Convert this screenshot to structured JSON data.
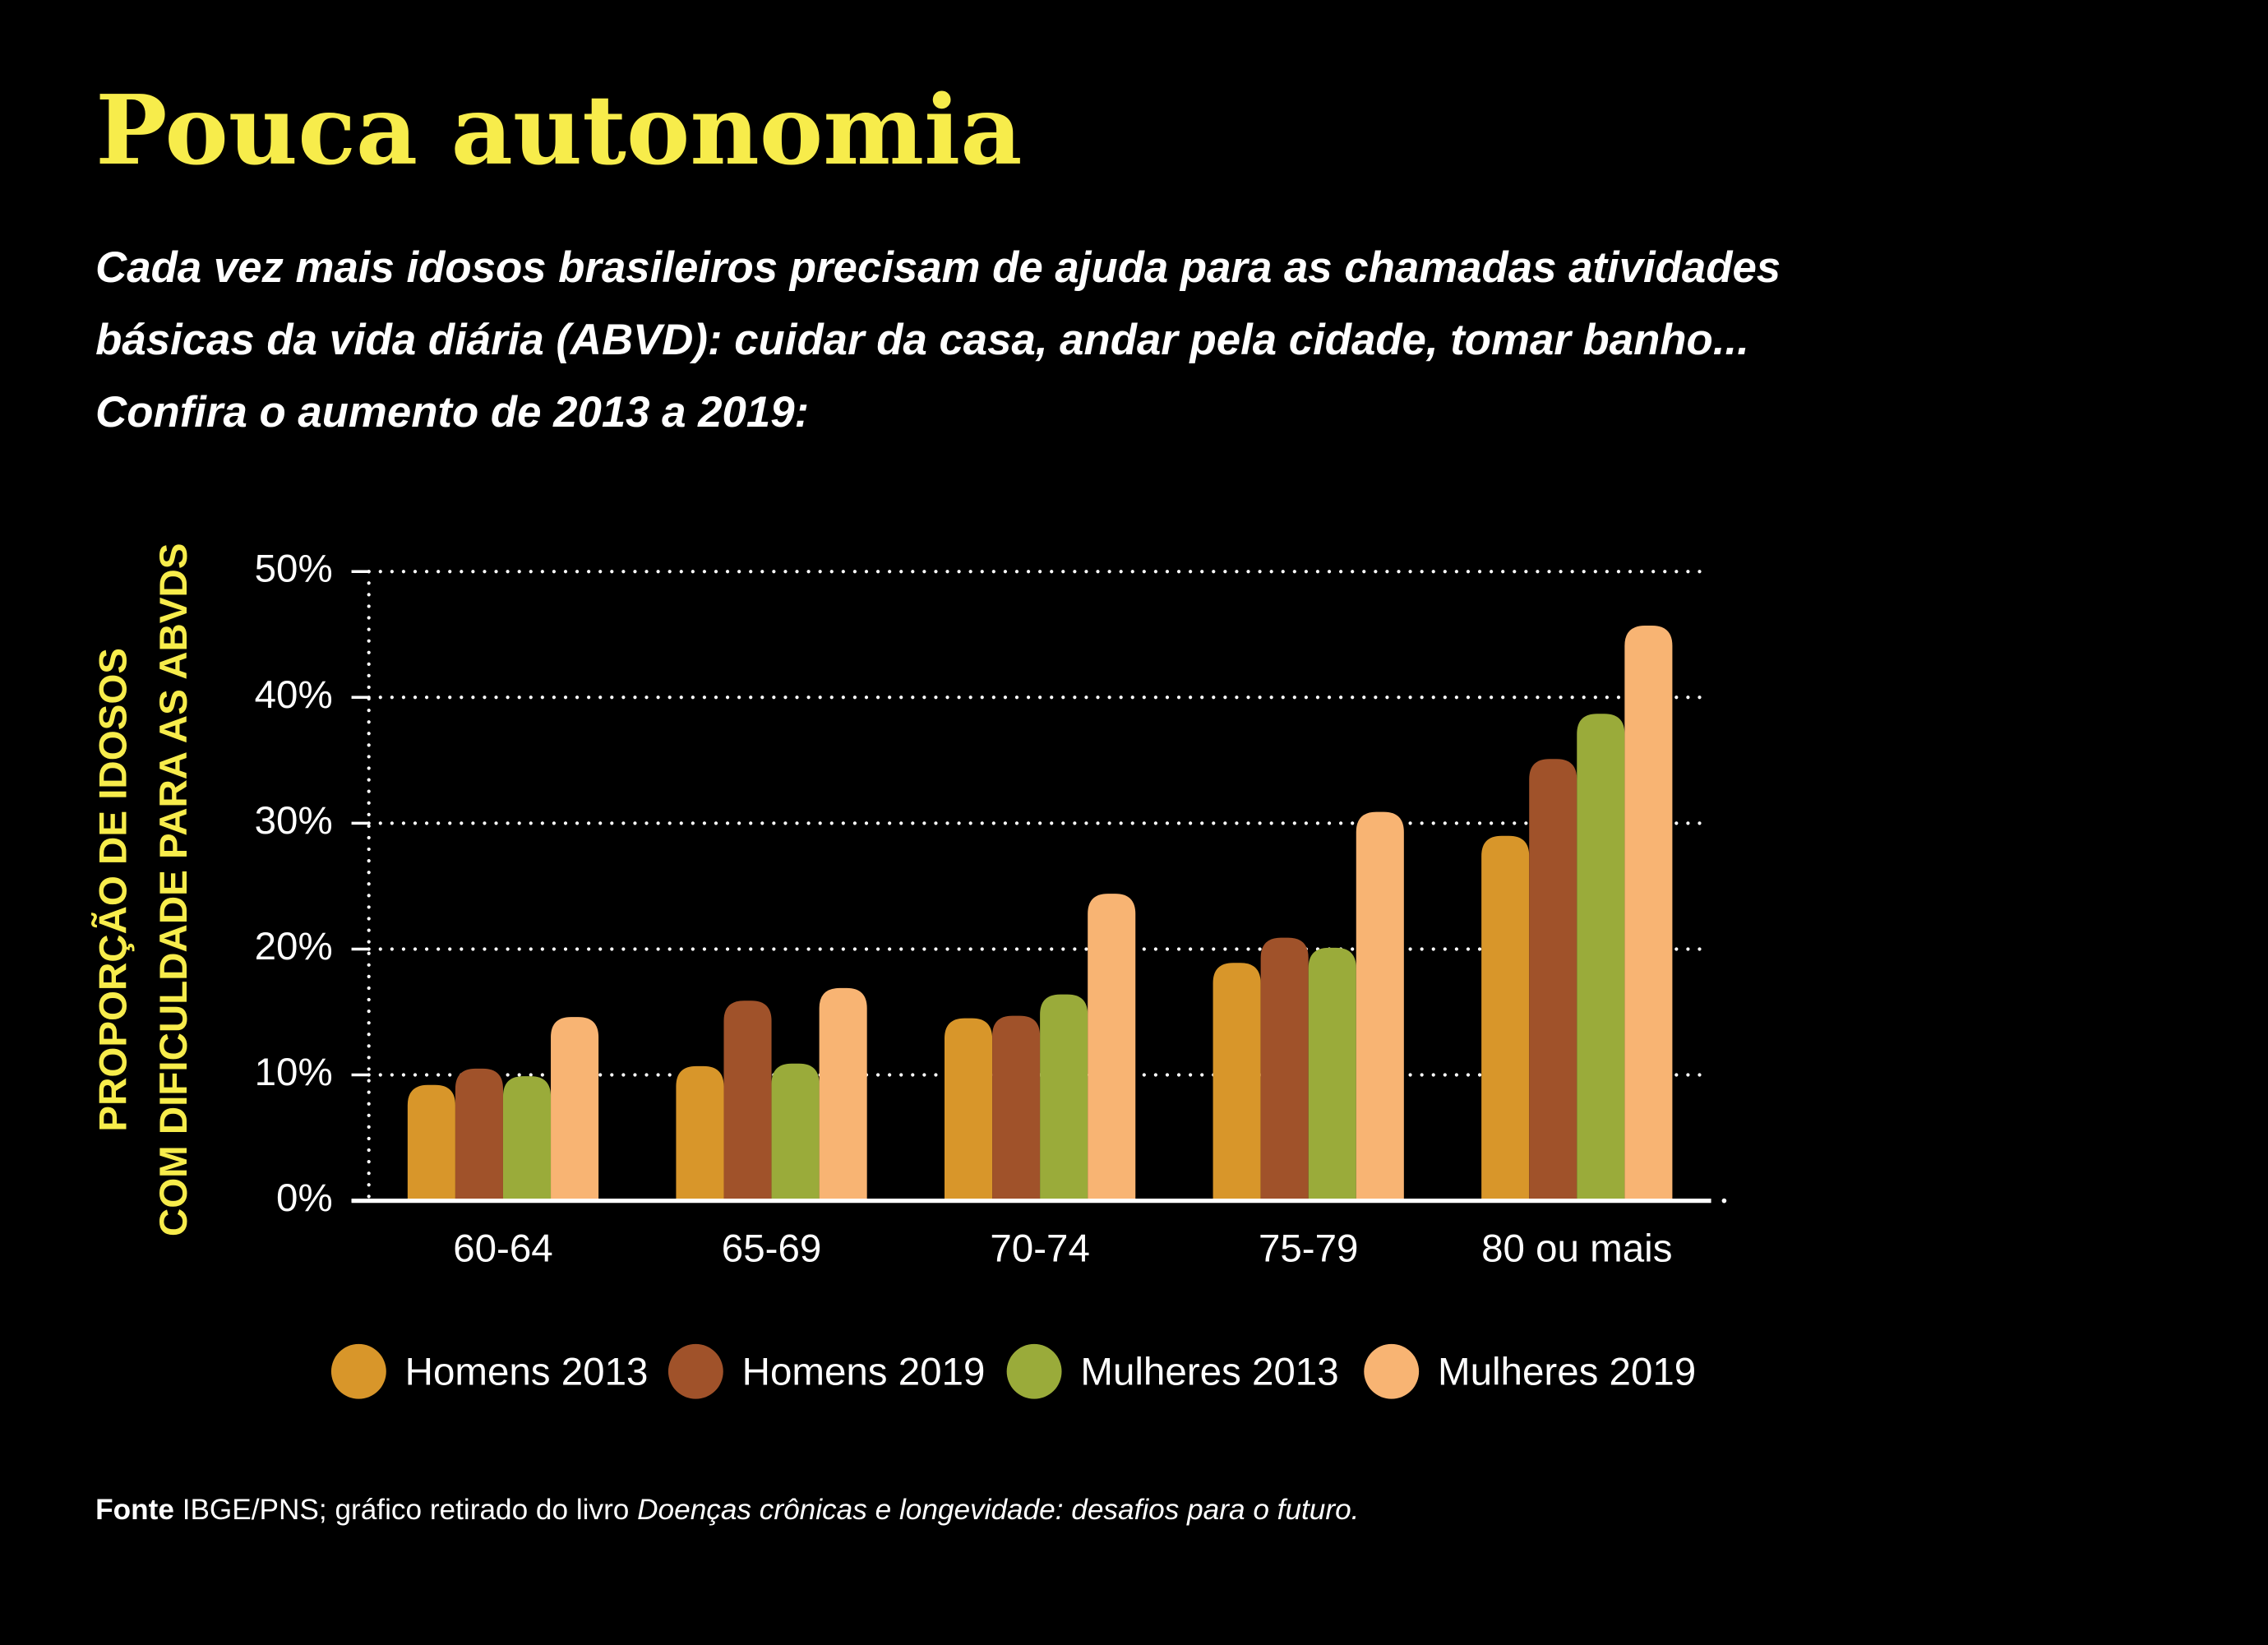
{
  "chart_data": {
    "type": "bar",
    "title": "Pouca autonomia",
    "subtitle": [
      "Cada vez mais idosos brasileiros precisam de ajuda para as chamadas atividades",
      "básicas da vida diária (ABVD): cuidar da casa, andar pela cidade, tomar banho...",
      "Confira o aumento de 2013 a 2019:"
    ],
    "ylabel": [
      "PROPORÇÃO DE IDOSOS",
      "COM DIFICULDADE PARA AS ABVDS"
    ],
    "categories": [
      "60-64",
      "65-69",
      "70-74",
      "75-79",
      "80 ou mais"
    ],
    "series": [
      {
        "name": "Homens 2013",
        "color": "#d8962a",
        "values": [
          9.2,
          10.7,
          14.5,
          18.9,
          29
        ]
      },
      {
        "name": "Homens 2019",
        "color": "#a0522a",
        "values": [
          10.5,
          15.9,
          14.7,
          20.9,
          35.1
        ]
      },
      {
        "name": "Mulheres 2013",
        "color": "#9aab3a",
        "values": [
          9.9,
          10.9,
          16.4,
          20.1,
          38.7
        ]
      },
      {
        "name": "Mulheres 2019",
        "color": "#f8b473",
        "values": [
          14.6,
          16.9,
          24.4,
          30.9,
          45.7
        ]
      }
    ],
    "ylim": [
      0,
      50
    ],
    "yticks": [
      {
        "value": 0,
        "label": "0%"
      },
      {
        "value": 10,
        "label": "10%"
      },
      {
        "value": 20,
        "label": "20%"
      },
      {
        "value": 30,
        "label": "30%"
      },
      {
        "value": 40,
        "label": "40%"
      },
      {
        "value": 50,
        "label": "50%"
      }
    ],
    "grid": true,
    "source": {
      "label": "Fonte",
      "text": "IBGE/PNS; gráfico retirado do livro",
      "book": "Doenças crônicas e longevidade: desafios para o futuro."
    }
  }
}
